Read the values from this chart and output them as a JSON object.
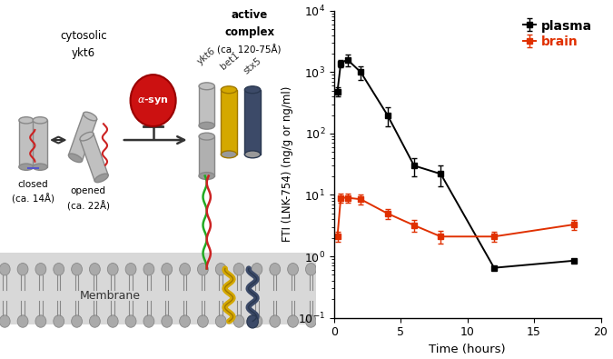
{
  "plasma_x": [
    0.25,
    0.5,
    1,
    2,
    4,
    6,
    8,
    12,
    18
  ],
  "plasma_y": [
    480,
    1400,
    1600,
    1000,
    200,
    30,
    22,
    0.65,
    0.85
  ],
  "plasma_yerr_low": [
    80,
    200,
    350,
    250,
    70,
    10,
    8,
    0.0,
    0.0
  ],
  "plasma_yerr_high": [
    80,
    200,
    350,
    250,
    70,
    10,
    8,
    0.0,
    0.0
  ],
  "brain_x": [
    0.25,
    0.5,
    1,
    2,
    4,
    6,
    8,
    12,
    18
  ],
  "brain_y": [
    2.1,
    9.0,
    9.0,
    8.5,
    5.0,
    3.2,
    2.1,
    2.1,
    3.3
  ],
  "brain_yerr_low": [
    0.4,
    1.5,
    1.5,
    1.5,
    0.9,
    0.7,
    0.5,
    0.4,
    0.6
  ],
  "brain_yerr_high": [
    0.4,
    1.5,
    1.5,
    1.5,
    0.9,
    0.7,
    0.5,
    0.4,
    0.6
  ],
  "plasma_color": "#000000",
  "brain_color": "#e03000",
  "xlabel": "Time (hours)",
  "ylabel": "FTI (LNK-754) (ng/g or ng/ml)",
  "bg_color": "#ffffff",
  "legend_plasma": "plasma",
  "legend_brain": "brain",
  "mem_color": "#aaaaaa",
  "mem_bg": "#d8d8d8",
  "cyl_gray": "#c0c0c0",
  "cyl_gray_ec": "#888888",
  "cyl_yellow": "#d4a800",
  "cyl_yellow_ec": "#a07800",
  "cyl_blue": "#3c4a68",
  "cyl_blue_ec": "#2a3850",
  "alpha_syn_color": "#cc1111",
  "red_line": "#cc2222",
  "green_line": "#22aa22",
  "blue_line": "#5555cc"
}
